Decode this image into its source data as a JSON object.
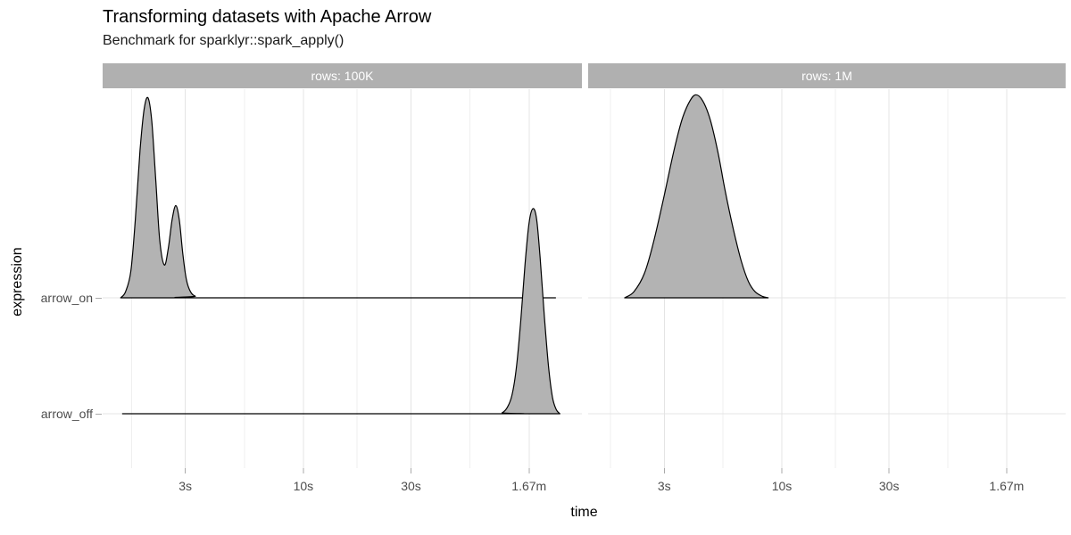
{
  "header": {
    "title": "Transforming datasets with Apache Arrow",
    "subtitle": "Benchmark for sparklyr::spark_apply()"
  },
  "chart_data": {
    "type": "area",
    "subtype": "density-ridgeline",
    "title": "Transforming datasets with Apache Arrow",
    "subtitle": "Benchmark for sparklyr::spark_apply()",
    "xlabel": "time",
    "ylabel": "expression",
    "x_scale": "log",
    "x_range_seconds": [
      1.3,
      175
    ],
    "grid": "on",
    "legend": "none",
    "x_ticks": [
      {
        "label": "3s",
        "seconds": 3
      },
      {
        "label": "10s",
        "seconds": 10
      },
      {
        "label": "30s",
        "seconds": 30
      },
      {
        "label": "1.67m",
        "seconds": 100
      }
    ],
    "y_categories": [
      "arrow_off",
      "arrow_on"
    ],
    "facets": [
      {
        "label": "rows:  100K",
        "series": [
          {
            "name": "arrow_on",
            "points": [
              [
                1.55,
                0
              ],
              [
                1.63,
                0.03
              ],
              [
                1.72,
                0.13
              ],
              [
                1.8,
                0.38
              ],
              [
                1.89,
                0.72
              ],
              [
                1.97,
                0.92
              ],
              [
                2.05,
                0.975
              ],
              [
                2.13,
                0.86
              ],
              [
                2.22,
                0.57
              ],
              [
                2.31,
                0.28
              ],
              [
                2.42,
                0.16
              ],
              [
                2.52,
                0.24
              ],
              [
                2.62,
                0.38
              ],
              [
                2.72,
                0.45
              ],
              [
                2.82,
                0.38
              ],
              [
                2.92,
                0.22
              ],
              [
                3.03,
                0.09
              ],
              [
                3.16,
                0.03
              ],
              [
                3.32,
                0.008
              ],
              [
                3.6,
                0
              ],
              [
                131,
                0
              ]
            ]
          },
          {
            "name": "arrow_off",
            "points": [
              [
                1.58,
                0
              ],
              [
                70,
                0
              ],
              [
                76,
                0.005
              ],
              [
                80,
                0.03
              ],
              [
                84,
                0.09
              ],
              [
                88,
                0.23
              ],
              [
                92,
                0.46
              ],
              [
                96,
                0.73
              ],
              [
                100,
                0.93
              ],
              [
                104,
                1.0
              ],
              [
                108,
                0.95
              ],
              [
                112,
                0.76
              ],
              [
                117,
                0.47
              ],
              [
                122,
                0.23
              ],
              [
                127,
                0.08
              ],
              [
                132,
                0.02
              ],
              [
                137,
                0
              ]
            ]
          }
        ]
      },
      {
        "label": "rows:  1M",
        "series": [
          {
            "name": "arrow_on",
            "points": [
              [
                2.0,
                0
              ],
              [
                2.2,
                0.03
              ],
              [
                2.45,
                0.12
              ],
              [
                2.7,
                0.28
              ],
              [
                3.0,
                0.5
              ],
              [
                3.3,
                0.71
              ],
              [
                3.6,
                0.87
              ],
              [
                3.9,
                0.96
              ],
              [
                4.15,
                0.99
              ],
              [
                4.45,
                0.96
              ],
              [
                4.8,
                0.87
              ],
              [
                5.2,
                0.71
              ],
              [
                5.6,
                0.52
              ],
              [
                6.1,
                0.33
              ],
              [
                6.6,
                0.18
              ],
              [
                7.1,
                0.08
              ],
              [
                7.6,
                0.03
              ],
              [
                8.2,
                0.007
              ],
              [
                8.7,
                0
              ]
            ]
          }
        ]
      }
    ]
  },
  "colors": {
    "ridge_fill": "#b3b3b3",
    "ridge_stroke": "#000000",
    "strip_bg": "#b0b0b0",
    "strip_text": "#ffffff",
    "grid_major": "#e4e4e4",
    "grid_minor": "#efefef",
    "axis_tick": "#aaaaaa",
    "axis_text": "#4d4d4d",
    "title_text": "#000000"
  }
}
